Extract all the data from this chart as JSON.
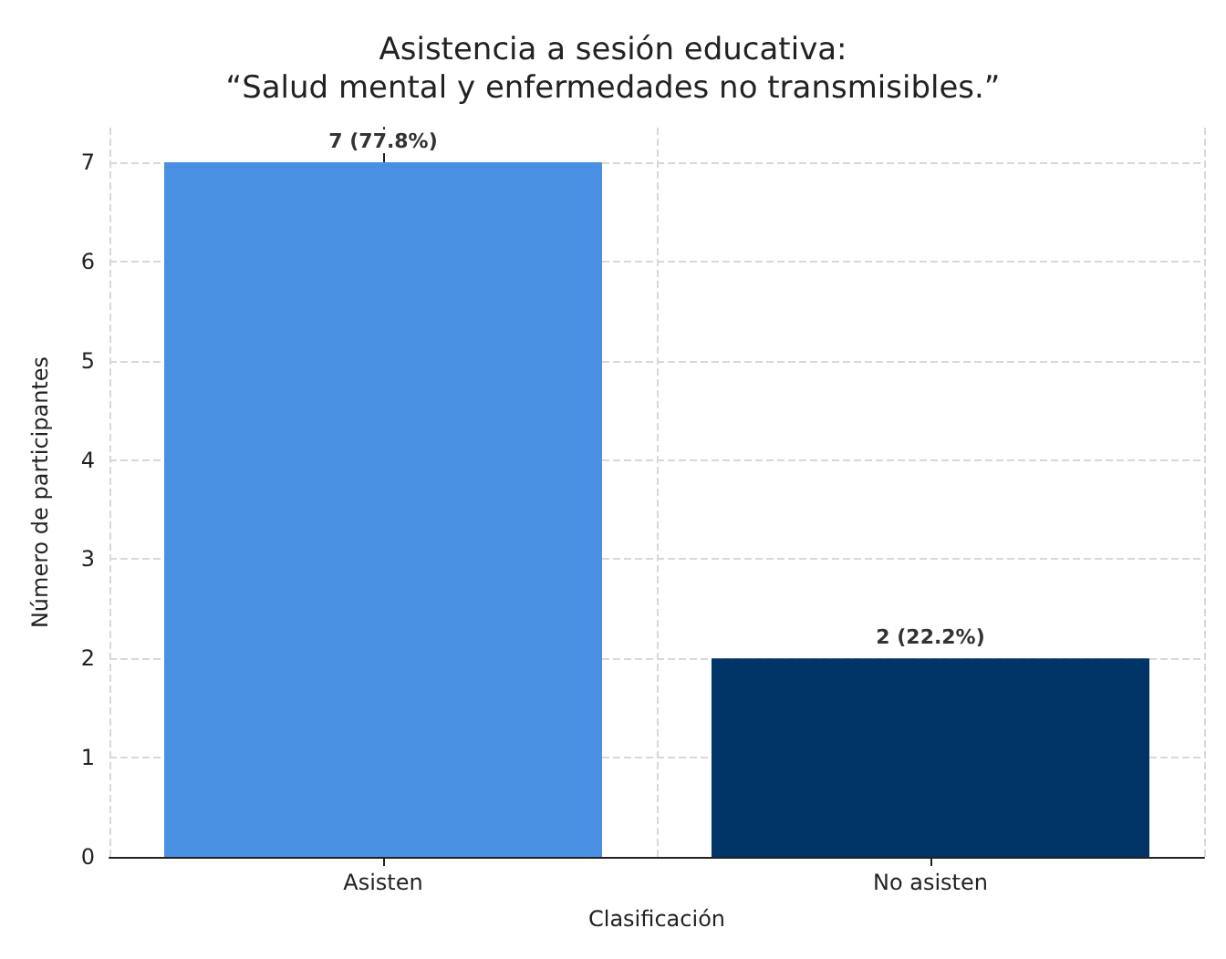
{
  "chart_data": {
    "type": "bar",
    "title": "Asistencia a sesión educativa:\n“Salud mental y enfermedades no transmisibles.”",
    "xlabel": "Clasificación",
    "ylabel": "Número de participantes",
    "categories": [
      "Asisten",
      "No asisten"
    ],
    "values": [
      7,
      2
    ],
    "colors": [
      "#4a90e2",
      "#003366"
    ],
    "value_labels": [
      "7 (77.8%)",
      "2 (22.2%)"
    ],
    "ylim": [
      0,
      7.35
    ],
    "yticks": [
      0,
      1,
      2,
      3,
      4,
      5,
      6,
      7
    ],
    "grid": true
  }
}
